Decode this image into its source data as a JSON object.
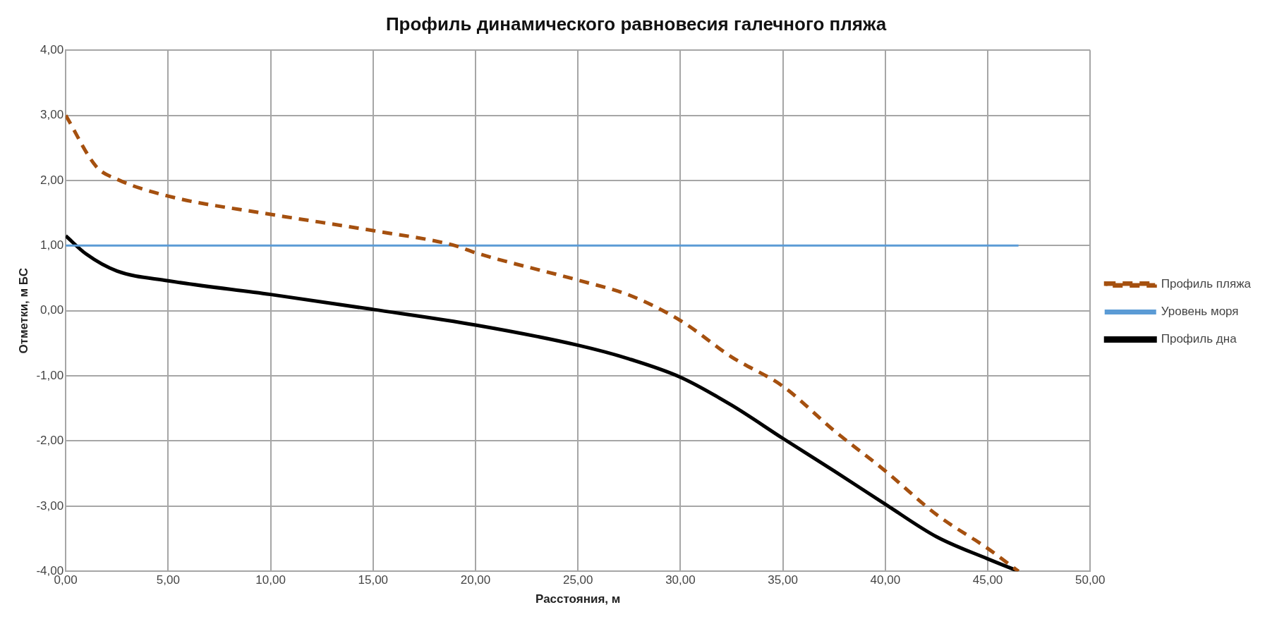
{
  "chart_data": {
    "type": "line",
    "title": "Профиль динамического равновесия галечного пляжа",
    "xlabel": "Расстояния, м",
    "ylabel": "Отметки, м БС",
    "xlim": [
      0,
      50
    ],
    "ylim": [
      -4,
      4
    ],
    "xticks": [
      {
        "value": 0,
        "label": "0,00"
      },
      {
        "value": 5,
        "label": "5,00"
      },
      {
        "value": 10,
        "label": "10,00"
      },
      {
        "value": 15,
        "label": "15,00"
      },
      {
        "value": 20,
        "label": "20,00"
      },
      {
        "value": 25,
        "label": "25,00"
      },
      {
        "value": 30,
        "label": "30,00"
      },
      {
        "value": 35,
        "label": "35,00"
      },
      {
        "value": 40,
        "label": "40,00"
      },
      {
        "value": 45,
        "label": "45,00"
      },
      {
        "value": 50,
        "label": "50,00"
      }
    ],
    "yticks": [
      {
        "value": -4,
        "label": "-4,00"
      },
      {
        "value": -3,
        "label": "-3,00"
      },
      {
        "value": -2,
        "label": "-2,00"
      },
      {
        "value": -1,
        "label": "-1,00"
      },
      {
        "value": 0,
        "label": "0,00"
      },
      {
        "value": 1,
        "label": "1,00"
      },
      {
        "value": 2,
        "label": "2,00"
      },
      {
        "value": 3,
        "label": "3,00"
      },
      {
        "value": 4,
        "label": "4,00"
      }
    ],
    "grid": true,
    "legend": "right",
    "marker": "none",
    "series": [
      {
        "name": "Профиль пляжа",
        "color": "#a5500f",
        "line_style": "dashed",
        "x": [
          0,
          1.5,
          2.5,
          5,
          10,
          15,
          19,
          20,
          25,
          27.5,
          30,
          32.5,
          35,
          37.5,
          40,
          42.5,
          45,
          46.5
        ],
        "values": [
          3,
          2.21,
          2.02,
          1.76,
          1.48,
          1.23,
          1,
          0.89,
          0.47,
          0.24,
          -0.15,
          -0.71,
          -1.16,
          -1.84,
          -2.46,
          -3.13,
          -3.65,
          -4
        ]
      },
      {
        "name": "Уровень моря",
        "color": "#5b9bd5",
        "line_style": "solid",
        "x": [
          0,
          46.5
        ],
        "values": [
          1,
          1
        ]
      },
      {
        "name": "Профиль дна",
        "color": "#000000",
        "line_style": "solid",
        "x": [
          0,
          1,
          2.5,
          5,
          10,
          15,
          20,
          25,
          27.5,
          30,
          32.5,
          35,
          37.5,
          40,
          42.5,
          45,
          46.5
        ],
        "values": [
          1.15,
          0.87,
          0.61,
          0.46,
          0.25,
          0.02,
          -0.22,
          -0.53,
          -0.74,
          -1.02,
          -1.45,
          -1.96,
          -2.46,
          -2.97,
          -3.47,
          -3.81,
          -4
        ]
      }
    ]
  }
}
